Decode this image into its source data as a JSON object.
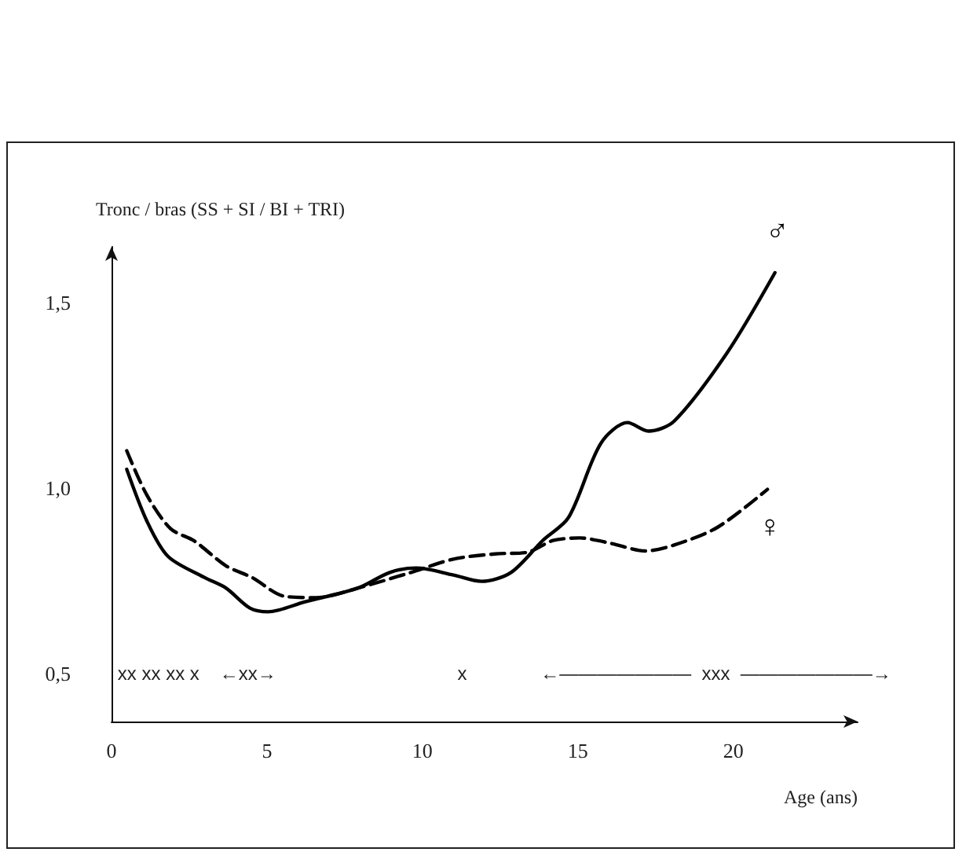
{
  "chart_data": {
    "type": "line",
    "ylabel": "Tronc / bras (SS + SI / BI + TRI)",
    "xlabel": "Age (ans)",
    "xlim": [
      0,
      24
    ],
    "xticks": [
      0,
      5,
      10,
      15,
      20
    ],
    "ylim": [
      0.37,
      1.65
    ],
    "yticks": [
      {
        "value": 0.5,
        "label": "0,5"
      },
      {
        "value": 1.0,
        "label": "1,0"
      },
      {
        "value": 1.5,
        "label": "1,5"
      }
    ],
    "grid": false,
    "legend": false,
    "marker": "none",
    "series": [
      {
        "name": "♂",
        "color": "#000000",
        "line_style": "solid",
        "x": [
          0.49,
          1.14,
          1.82,
          3.0,
          3.68,
          4.45,
          5.04,
          6.23,
          7.93,
          8.95,
          9.8,
          11.0,
          11.9,
          12.85,
          13.87,
          14.7,
          15.74,
          16.6,
          17.27,
          18.1,
          19.8,
          21.34
        ],
        "values": [
          1.05,
          0.91,
          0.815,
          0.758,
          0.73,
          0.676,
          0.666,
          0.693,
          0.73,
          0.772,
          0.784,
          0.765,
          0.748,
          0.772,
          0.858,
          0.92,
          1.12,
          1.176,
          1.153,
          1.18,
          1.364,
          1.58
        ]
      },
      {
        "name": "♀",
        "color": "#000000",
        "line_style": "dashed",
        "x": [
          0.49,
          1.14,
          1.9,
          2.66,
          3.68,
          4.53,
          5.55,
          6.57,
          7.93,
          9.63,
          11.0,
          12.34,
          13.36,
          14.2,
          15.06,
          16.08,
          17.18,
          18.1,
          19.5,
          21.1
        ],
        "values": [
          1.1,
          0.98,
          0.89,
          0.857,
          0.79,
          0.758,
          0.708,
          0.704,
          0.73,
          0.772,
          0.808,
          0.822,
          0.826,
          0.858,
          0.865,
          0.85,
          0.83,
          0.846,
          0.894,
          0.996
        ]
      }
    ],
    "annotations": [
      "xx xx xx x",
      "←xx→",
      "x",
      "←———————  xxx  ———————→"
    ]
  }
}
